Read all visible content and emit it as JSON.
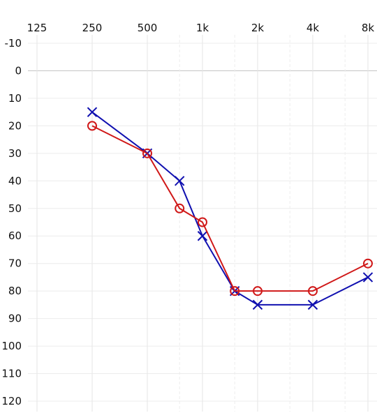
{
  "chart_data": {
    "type": "line",
    "title": "",
    "xlabel": "",
    "ylabel": "",
    "x_scale": "log2",
    "y_inverted": true,
    "x_ticks": [
      {
        "value": 125,
        "label": "125"
      },
      {
        "value": 250,
        "label": "250"
      },
      {
        "value": 500,
        "label": "500"
      },
      {
        "value": 1000,
        "label": "1k"
      },
      {
        "value": 2000,
        "label": "2k"
      },
      {
        "value": 4000,
        "label": "4k"
      },
      {
        "value": 8000,
        "label": "8k"
      }
    ],
    "x_minor_gridlines": [
      750,
      1500,
      3000,
      6000
    ],
    "y_ticks": [
      -10,
      0,
      10,
      20,
      30,
      40,
      50,
      60,
      70,
      80,
      90,
      100,
      110,
      120
    ],
    "xlim": [
      125,
      8000
    ],
    "ylim": [
      -10,
      120
    ],
    "zero_line": 0,
    "grid": true,
    "series": [
      {
        "marker": "x",
        "color": "#1010b0",
        "points": [
          {
            "x": 250,
            "y": 15
          },
          {
            "x": 500,
            "y": 30
          },
          {
            "x": 750,
            "y": 40
          },
          {
            "x": 1000,
            "y": 60
          },
          {
            "x": 1500,
            "y": 80
          },
          {
            "x": 2000,
            "y": 85
          },
          {
            "x": 4000,
            "y": 85
          },
          {
            "x": 8000,
            "y": 75
          }
        ]
      },
      {
        "marker": "o",
        "color": "#d01818",
        "points": [
          {
            "x": 250,
            "y": 20
          },
          {
            "x": 500,
            "y": 30
          },
          {
            "x": 750,
            "y": 50
          },
          {
            "x": 1000,
            "y": 55
          },
          {
            "x": 1500,
            "y": 80
          },
          {
            "x": 2000,
            "y": 80
          },
          {
            "x": 4000,
            "y": 80
          },
          {
            "x": 8000,
            "y": 70
          }
        ]
      }
    ]
  }
}
